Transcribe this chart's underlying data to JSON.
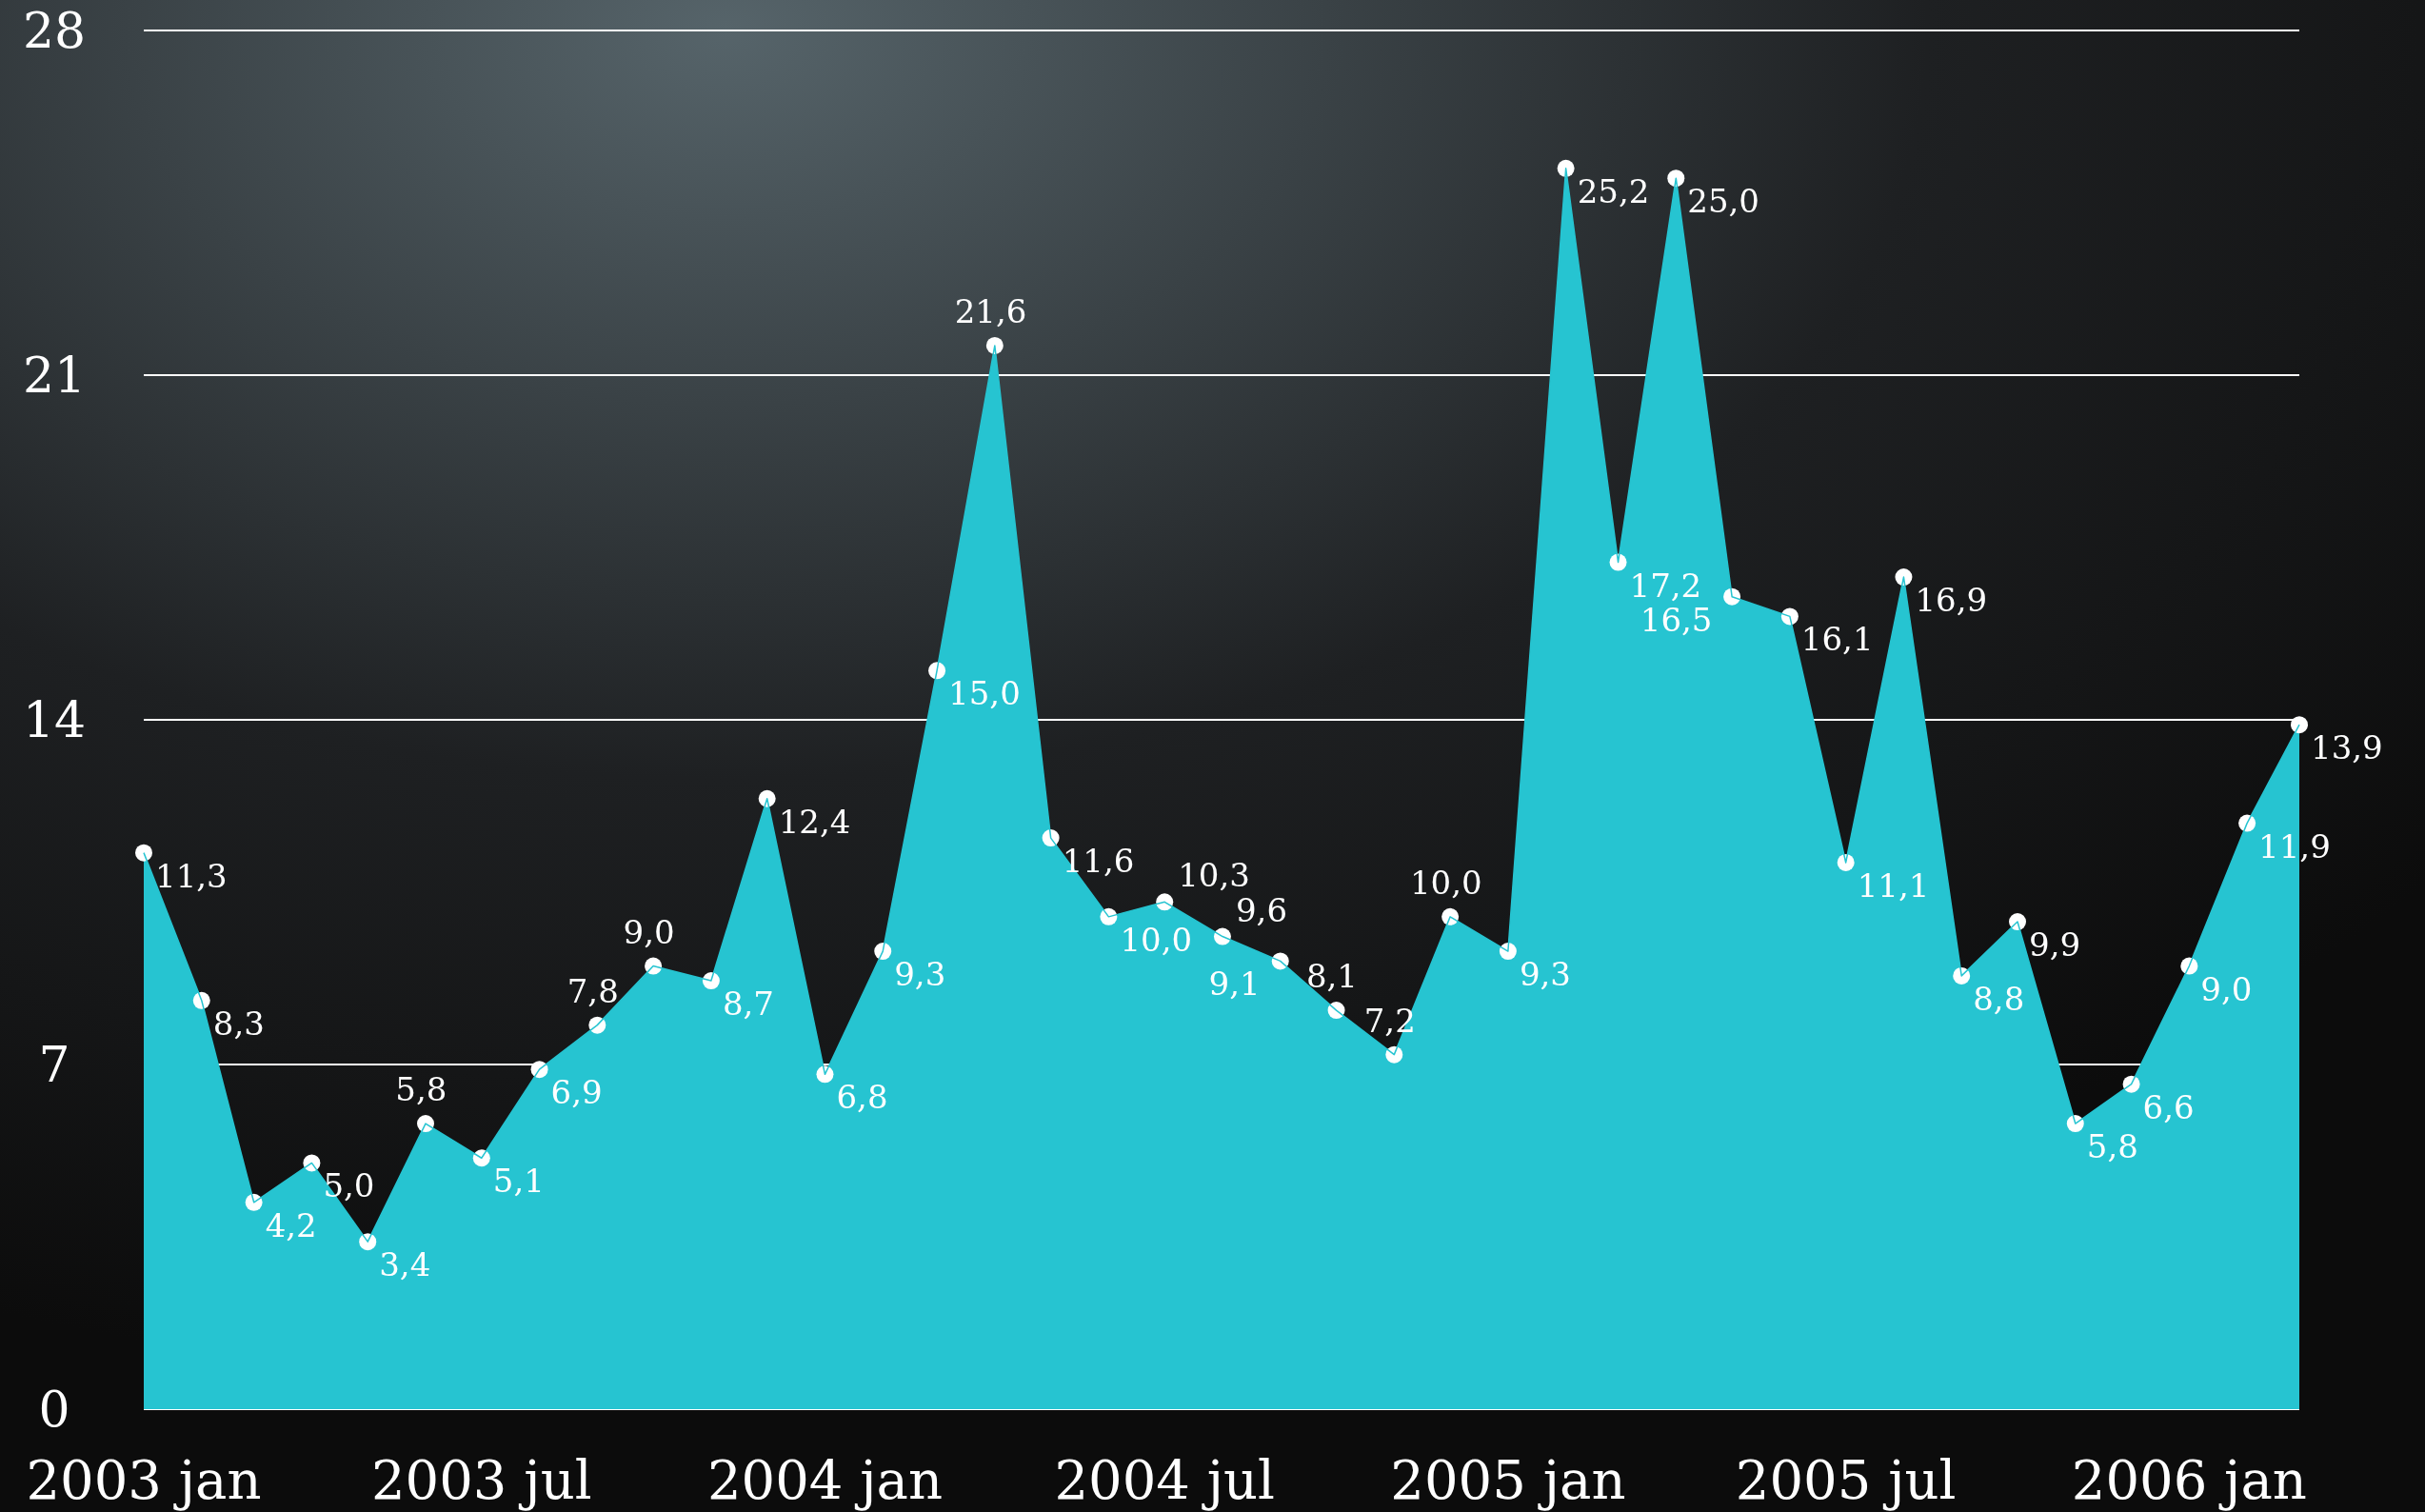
{
  "chart_data": {
    "type": "area",
    "x": [
      "2003-01",
      "2003-02",
      "2003-03",
      "2003-04",
      "2003-05",
      "2003-06",
      "2003-07",
      "2003-08",
      "2003-09",
      "2003-10",
      "2003-11",
      "2003-12",
      "2004-01",
      "2004-02",
      "2004-03",
      "2004-04",
      "2004-05",
      "2004-06",
      "2004-07",
      "2004-08",
      "2004-09",
      "2004-10",
      "2004-11",
      "2004-12",
      "2005-01",
      "2005-02",
      "2005-03",
      "2005-04",
      "2005-05",
      "2005-06",
      "2005-07",
      "2005-08",
      "2005-09",
      "2005-10",
      "2005-11",
      "2005-12",
      "2006-01",
      "2006-02",
      "2006-03"
    ],
    "series": [
      {
        "color": "#26c4d1",
        "values": [
          11.3,
          8.3,
          4.2,
          5.0,
          3.4,
          5.8,
          5.1,
          6.9,
          7.8,
          9.0,
          8.7,
          12.4,
          6.8,
          9.3,
          15.0,
          21.6,
          11.6,
          10.0,
          10.3,
          9.6,
          9.1,
          8.1,
          7.2,
          10.0,
          9.3,
          25.2,
          17.2,
          25.0,
          16.5,
          16.1,
          11.1,
          16.9,
          8.8,
          9.9,
          5.8,
          6.6,
          9.0,
          11.9,
          13.9
        ]
      },
      {
        "type": "scatter",
        "color": "#ffffff",
        "marker": "circle",
        "values": [
          11.3,
          8.3,
          4.2,
          5.0,
          3.4,
          5.8,
          5.1,
          6.9,
          7.8,
          9.0,
          8.7,
          12.4,
          6.8,
          9.3,
          15.0,
          21.6,
          11.6,
          10.0,
          10.3,
          9.6,
          9.1,
          8.1,
          7.2,
          10.0,
          9.3,
          25.2,
          17.2,
          25.0,
          16.5,
          16.1,
          11.1,
          16.9,
          8.8,
          9.9,
          5.8,
          6.6,
          9.0,
          11.9,
          13.9
        ],
        "value_labels": [
          "11,3",
          "8,3",
          "4,2",
          "5,0",
          "3,4",
          "5,8",
          "5,1",
          "6,9",
          "7,8",
          "9,0",
          "8,7",
          "12,4",
          "6,8",
          "9,3",
          "15,0",
          "21,6",
          "11,6",
          "10,0",
          "10,3",
          "9,6",
          "9,1",
          "8,1",
          "7,2",
          "10,0",
          "9,3",
          "25,2",
          "17,2",
          "25,0",
          "16,5",
          "16,1",
          "11,1",
          "16,9",
          "8,8",
          "9,9",
          "5,8",
          "6,6",
          "9,0",
          "11,9",
          "13,9"
        ]
      }
    ],
    "xlim": [
      "2003-01",
      "2006-03"
    ],
    "xticks": [
      {
        "value": "2003-01",
        "label": "2003 jan"
      },
      {
        "value": "2003-07",
        "label": "2003 jul"
      },
      {
        "value": "2004-01",
        "label": "2004 jan"
      },
      {
        "value": "2004-07",
        "label": "2004 jul"
      },
      {
        "value": "2005-01",
        "label": "2005 jan"
      },
      {
        "value": "2005-07",
        "label": "2005 jul"
      },
      {
        "value": "2006-01",
        "label": "2006 jan"
      }
    ],
    "ylim": [
      0,
      28
    ],
    "yticks": [
      0,
      7,
      14,
      21,
      28
    ],
    "grid": "y"
  }
}
